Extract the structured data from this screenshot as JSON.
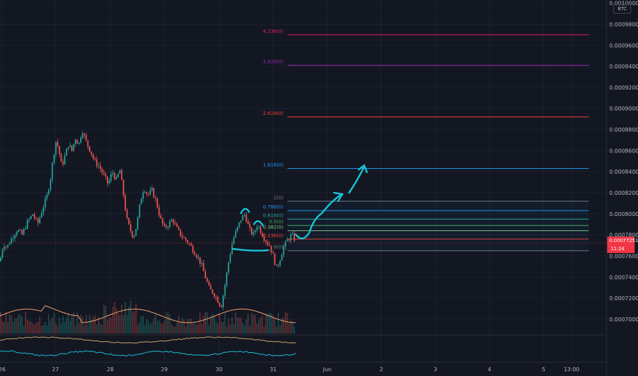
{
  "header": {
    "currency": "BTC"
  },
  "price_badge": {
    "value": "0.00077251",
    "countdown": "11:24",
    "color": "#f23645"
  },
  "colors": {
    "background": "#131722",
    "up": "#26a69a",
    "down": "#ef5350",
    "annotation": "#17c3d6"
  },
  "chart_data": {
    "type": "candlestick",
    "title": "",
    "y_ticks": [
      "0.00070000",
      "0.00072000",
      "0.00074000",
      "0.00076000",
      "0.00078000",
      "0.00080000",
      "0.00082000",
      "0.00084000",
      "0.00086000",
      "0.00088000",
      "0.00090000",
      "0.00092000",
      "0.00094000",
      "0.00096000",
      "0.00098000",
      "0.00100000"
    ],
    "x_ticks": [
      "26",
      "27",
      "28",
      "29",
      "30",
      "31",
      "Jun",
      "2",
      "3",
      "4",
      "5",
      "13:00"
    ],
    "ylim": [
      0.000685,
      0.001003
    ],
    "current_price": 0.00077251,
    "fib_levels": [
      {
        "label": "4.236(0)",
        "value": 0.00097,
        "color": "#e91e63"
      },
      {
        "label": "3.618(0)",
        "value": 0.000941,
        "color": "#9c27b0"
      },
      {
        "label": "2.618(0)",
        "value": 0.000892,
        "color": "#f44336"
      },
      {
        "label": "1.618(0)",
        "value": 0.000843,
        "color": "#2196f3"
      },
      {
        "label": "1(0)",
        "value": 0.000812,
        "color": "#787b86"
      },
      {
        "label": "0.786(0)",
        "value": 0.000803,
        "color": "#2196f3"
      },
      {
        "label": "0.618(0)",
        "value": 0.000795,
        "color": "#26a69a"
      },
      {
        "label": "0.5(0)",
        "value": 0.000789,
        "color": "#4caf50"
      },
      {
        "label": "0.382(0)",
        "value": 0.000784,
        "color": "#81c784"
      },
      {
        "label": "0.236(0)",
        "value": 0.000776,
        "color": "#f44336"
      },
      {
        "label": "0(0)",
        "value": 0.000765,
        "color": "#787b86"
      }
    ],
    "price_path": [
      [
        0,
        0.000755
      ],
      [
        5,
        0.000772
      ],
      [
        10,
        0.000768
      ],
      [
        18,
        0.000778
      ],
      [
        25,
        0.000785
      ],
      [
        32,
        0.00078
      ],
      [
        40,
        0.000792
      ],
      [
        48,
        0.0008
      ],
      [
        55,
        0.00079
      ],
      [
        62,
        0.000805
      ],
      [
        68,
        0.000815
      ],
      [
        74,
        0.000835
      ],
      [
        78,
        0.000855
      ],
      [
        82,
        0.00087
      ],
      [
        86,
        0.00086
      ],
      [
        90,
        0.000845
      ],
      [
        95,
        0.000855
      ],
      [
        100,
        0.000866
      ],
      [
        105,
        0.00086
      ],
      [
        110,
        0.000872
      ],
      [
        115,
        0.000866
      ],
      [
        120,
        0.00088
      ],
      [
        126,
        0.000868
      ],
      [
        132,
        0.00086
      ],
      [
        138,
        0.00085
      ],
      [
        145,
        0.000845
      ],
      [
        152,
        0.000836
      ],
      [
        158,
        0.000828
      ],
      [
        164,
        0.00084
      ],
      [
        170,
        0.000832
      ],
      [
        175,
        0.000842
      ],
      [
        180,
        0.00082
      ],
      [
        185,
        0.000795
      ],
      [
        190,
        0.000785
      ],
      [
        195,
        0.000778
      ],
      [
        200,
        0.00079
      ],
      [
        205,
        0.000812
      ],
      [
        210,
        0.000825
      ],
      [
        216,
        0.000818
      ],
      [
        222,
        0.000822
      ],
      [
        228,
        0.000812
      ],
      [
        234,
        0.000796
      ],
      [
        240,
        0.000786
      ],
      [
        246,
        0.00079
      ],
      [
        252,
        0.000795
      ],
      [
        258,
        0.000786
      ],
      [
        264,
        0.00078
      ],
      [
        270,
        0.000776
      ],
      [
        276,
        0.000772
      ],
      [
        282,
        0.000766
      ],
      [
        288,
        0.00076
      ],
      [
        294,
        0.000752
      ],
      [
        300,
        0.00074
      ],
      [
        306,
        0.000728
      ],
      [
        312,
        0.000725
      ],
      [
        318,
        0.000718
      ],
      [
        323,
        0.000712
      ],
      [
        328,
        0.00073
      ],
      [
        334,
        0.000755
      ],
      [
        340,
        0.000775
      ],
      [
        346,
        0.000785
      ],
      [
        352,
        0.000795
      ],
      [
        358,
        0.0008
      ],
      [
        364,
        0.000785
      ],
      [
        370,
        0.00078
      ],
      [
        376,
        0.00079
      ],
      [
        382,
        0.000782
      ],
      [
        388,
        0.000775
      ],
      [
        394,
        0.00077
      ],
      [
        400,
        0.000758
      ],
      [
        404,
        0.000748
      ],
      [
        408,
        0.000755
      ],
      [
        414,
        0.000768
      ],
      [
        420,
        0.000775
      ],
      [
        426,
        0.00078
      ],
      [
        432,
        0.000774
      ]
    ]
  }
}
